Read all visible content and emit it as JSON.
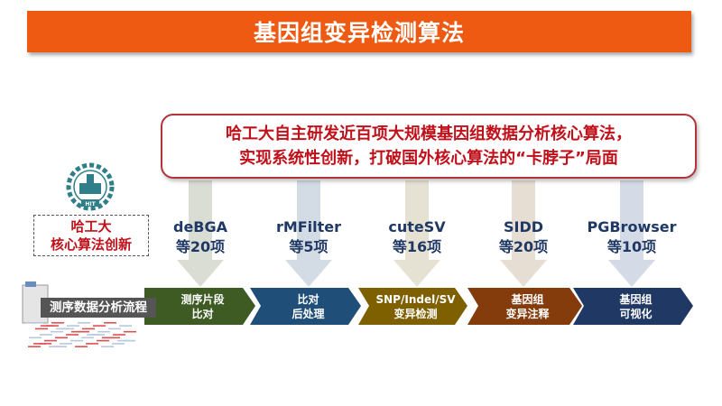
{
  "title": "基因组变异检测算法",
  "callout": {
    "line1": "哈工大自主研发近百项大规模基因组数据分析核心算法，",
    "line2": "实现系统性创新，打破国外核心算法的“卡脖子”局面"
  },
  "innovation_box": {
    "line1": "哈工大",
    "line2": "核心算法创新"
  },
  "pipeline_label": "测序数据分析流程",
  "logo": {
    "text": "HIT",
    "year": "1920"
  },
  "stages": [
    {
      "tool": "deBGA",
      "count": "等20项",
      "line1": "测序片段",
      "line2": "比对",
      "color": "#3d5b22",
      "arrow_color": "#d9ddd3"
    },
    {
      "tool": "rMFilter",
      "count": "等5项",
      "line1": "比对",
      "line2": "后处理",
      "color": "#1f4e79",
      "arrow_color": "#d3dbe4"
    },
    {
      "tool": "cuteSV",
      "count": "等16项",
      "line1": "SNP/Indel/SV",
      "line2": "变异检测",
      "color": "#7f6000",
      "arrow_color": "#e6e2d3"
    },
    {
      "tool": "SIDD",
      "count": "等20项",
      "line1": "基因组",
      "line2": "变异注释",
      "color": "#843c0c",
      "arrow_color": "#e6ddd3"
    },
    {
      "tool": "PGBrowser",
      "count": "等10项",
      "line1": "基因组",
      "line2": "可视化",
      "color": "#1f3864",
      "arrow_color": "#d5dbe6"
    }
  ]
}
